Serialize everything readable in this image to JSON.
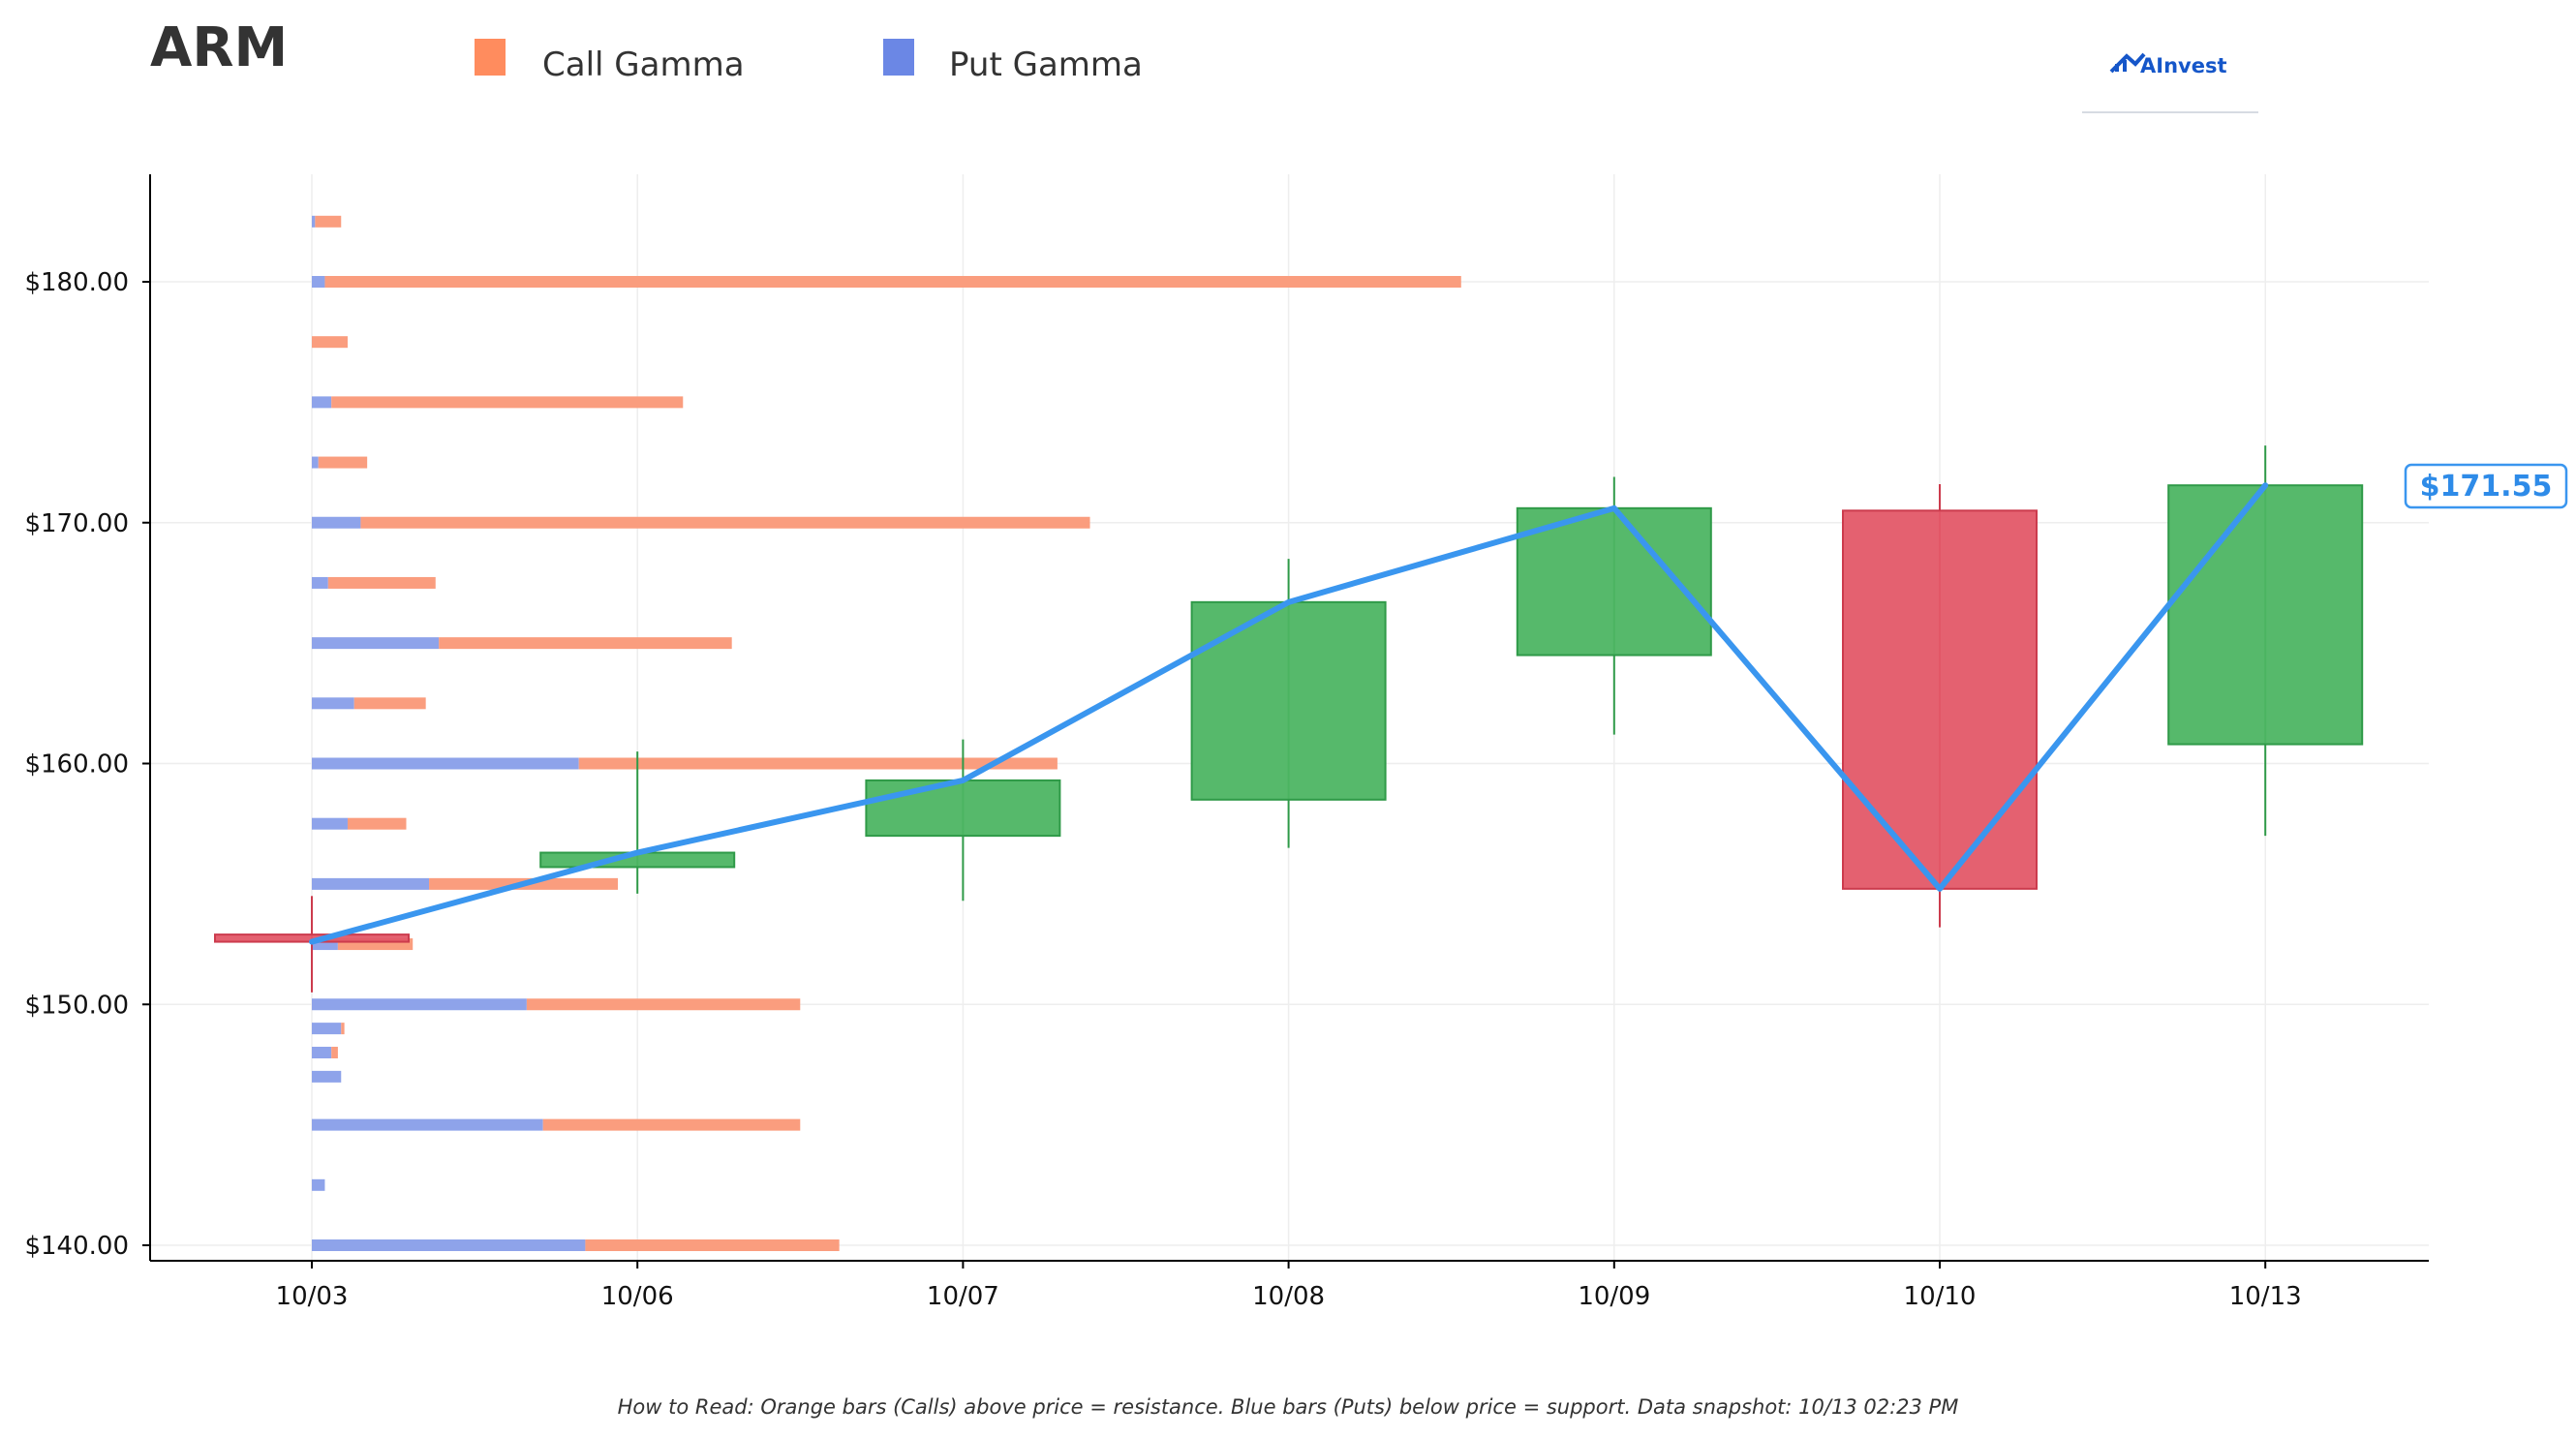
{
  "ticker": "ARM",
  "legend": [
    {
      "label": "Call Gamma",
      "color": "#ff8c5e"
    },
    {
      "label": "Put Gamma",
      "color": "#6b87e5"
    }
  ],
  "logo_text": "AInvest",
  "footnote": "How to Read: Orange bars (Calls) above price = resistance. Blue bars (Puts) below price = support. Data snapshot: 10/13 02:23 PM",
  "current_price_label": "$171.55",
  "colors": {
    "call": "#fa9d7e",
    "put": "#8ea3ea",
    "up": "#4db563",
    "down": "#e35868",
    "price_line": "#3a96ef"
  },
  "chart_data": {
    "type": "candlestick+horizontal-stacked-bar+line",
    "x_categories": [
      "10/03",
      "10/06",
      "10/07",
      "10/08",
      "10/09",
      "10/10",
      "10/13"
    ],
    "y_ticks": [
      140,
      150,
      160,
      170,
      180
    ],
    "y_tick_labels": [
      "$140.00",
      "$150.00",
      "$160.00",
      "$170.00",
      "$180.00"
    ],
    "ylim": [
      139.4,
      184.5
    ],
    "grid": true,
    "legend_position": "top",
    "candles": [
      {
        "date": "10/03",
        "open": 152.9,
        "high": 154.5,
        "low": 150.5,
        "close": 152.6
      },
      {
        "date": "10/06",
        "open": 155.7,
        "high": 160.5,
        "low": 154.6,
        "close": 156.3
      },
      {
        "date": "10/07",
        "open": 157.0,
        "high": 161.0,
        "low": 154.3,
        "close": 159.3
      },
      {
        "date": "10/08",
        "open": 158.5,
        "high": 168.5,
        "low": 156.5,
        "close": 166.7
      },
      {
        "date": "10/09",
        "open": 164.5,
        "high": 171.9,
        "low": 161.2,
        "close": 170.6
      },
      {
        "date": "10/10",
        "open": 170.5,
        "high": 171.6,
        "low": 153.2,
        "close": 154.8
      },
      {
        "date": "10/13",
        "open": 160.8,
        "high": 173.2,
        "low": 157.0,
        "close": 171.55
      }
    ],
    "close_line": [
      152.6,
      156.3,
      159.3,
      166.7,
      170.6,
      154.8,
      171.55
    ],
    "gamma_strikes": [
      {
        "strike": 140.0,
        "put": 0.84,
        "call": 0.78
      },
      {
        "strike": 142.5,
        "put": 0.04,
        "call": 0.0
      },
      {
        "strike": 145.0,
        "put": 0.71,
        "call": 0.79
      },
      {
        "strike": 147.0,
        "put": 0.09,
        "call": 0.0
      },
      {
        "strike": 148.0,
        "put": 0.06,
        "call": 0.02
      },
      {
        "strike": 149.0,
        "put": 0.09,
        "call": 0.01
      },
      {
        "strike": 150.0,
        "put": 0.66,
        "call": 0.84
      },
      {
        "strike": 152.5,
        "put": 0.08,
        "call": 0.23
      },
      {
        "strike": 155.0,
        "put": 0.36,
        "call": 0.58
      },
      {
        "strike": 157.5,
        "put": 0.11,
        "call": 0.18
      },
      {
        "strike": 160.0,
        "put": 0.82,
        "call": 1.47
      },
      {
        "strike": 162.5,
        "put": 0.13,
        "call": 0.22
      },
      {
        "strike": 165.0,
        "put": 0.39,
        "call": 0.9
      },
      {
        "strike": 167.5,
        "put": 0.05,
        "call": 0.33
      },
      {
        "strike": 170.0,
        "put": 0.15,
        "call": 2.24
      },
      {
        "strike": 172.5,
        "put": 0.02,
        "call": 0.15
      },
      {
        "strike": 175.0,
        "put": 0.06,
        "call": 1.08
      },
      {
        "strike": 177.5,
        "put": 0.0,
        "call": 0.11
      },
      {
        "strike": 180.0,
        "put": 0.04,
        "call": 3.49
      },
      {
        "strike": 182.5,
        "put": 0.01,
        "call": 0.08
      }
    ]
  }
}
